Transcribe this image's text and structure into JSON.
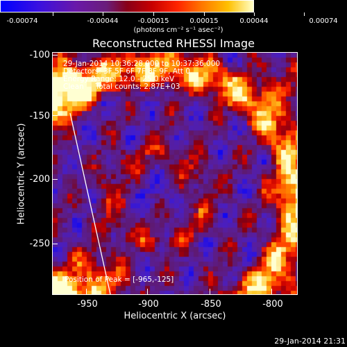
{
  "colorbar": {
    "tick_labels": [
      "-0.00074",
      "-0.00044",
      "-0.00015",
      "0.00015",
      "0.00044",
      "0.00074"
    ],
    "units": "(photons cm⁻² s⁻¹ asec⁻²)"
  },
  "title": "Reconstructed RHESSI Image",
  "info": {
    "time": "29-Jan-2014 10:36:28.000 to 10:37:36.000",
    "detectors": "Detectors: 3F 5F 6F 7F 8F 9F, Att 0",
    "energy": "Energy Range: 12.0 - 25.0 keV",
    "algo": "Clean     Total counts: 2.87E+03",
    "peak": "Position of Peak = [-965,-125]"
  },
  "axes": {
    "ylabel": "Heliocentric Y (arcsec)",
    "xlabel": "Heliocentric X (arcsec)",
    "yticks": [
      "-100",
      "-150",
      "-200",
      "-250"
    ],
    "xticks": [
      "-950",
      "-900",
      "-850",
      "-800"
    ]
  },
  "footer": {
    "timestamp": "29-Jan-2014 21:31"
  },
  "colors": {
    "positive_peak": "#ffffc8",
    "negative_peak": "#0000ff",
    "limb": "#ffffff"
  }
}
